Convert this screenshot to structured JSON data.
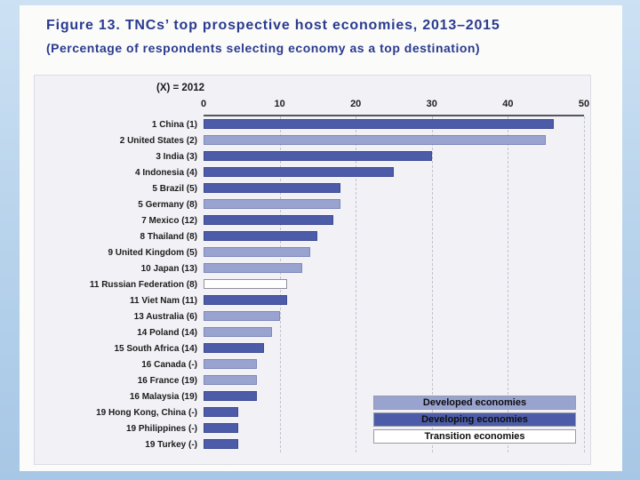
{
  "figure": {
    "title": "Figure 13. TNCs’ top prospective host economies, 2013–2015",
    "subtitle": "(Percentage of respondents selecting economy as a top destination)"
  },
  "colors": {
    "developed": "#98a3d0",
    "developing": "#4d5ca8",
    "transition": "#ffffff",
    "title_text": "#2a3b8f"
  },
  "chart_data": {
    "type": "bar",
    "orientation": "horizontal",
    "title": "Figure 13. TNCs’ top prospective host economies, 2013–2015",
    "subtitle": "(Percentage of respondents selecting economy as a top destination)",
    "note": "(X) = 2012",
    "xlim": [
      0,
      50
    ],
    "xticks": [
      0,
      10,
      20,
      30,
      40,
      50
    ],
    "grid": "dashed-vertical",
    "legend_position": "bottom-right-inside",
    "legend": [
      {
        "label": "Developed economies",
        "group": "developed",
        "color": "#98a3d0"
      },
      {
        "label": "Developing economies",
        "group": "developing",
        "color": "#4d5ca8"
      },
      {
        "label": "Transition economies",
        "group": "transition",
        "color": "#ffffff"
      }
    ],
    "bars": [
      {
        "label": "1 China (1)",
        "value": 46,
        "group": "developing"
      },
      {
        "label": "2 United States (2)",
        "value": 45,
        "group": "developed"
      },
      {
        "label": "3 India (3)",
        "value": 30,
        "group": "developing"
      },
      {
        "label": "4 Indonesia (4)",
        "value": 25,
        "group": "developing"
      },
      {
        "label": "5 Brazil (5)",
        "value": 18,
        "group": "developing"
      },
      {
        "label": "5 Germany (8)",
        "value": 18,
        "group": "developed"
      },
      {
        "label": "7 Mexico (12)",
        "value": 17,
        "group": "developing"
      },
      {
        "label": "8 Thailand (8)",
        "value": 15,
        "group": "developing"
      },
      {
        "label": "9 United Kingdom (5)",
        "value": 14,
        "group": "developed"
      },
      {
        "label": "10 Japan (13)",
        "value": 13,
        "group": "developed"
      },
      {
        "label": "11 Russian Federation (8)",
        "value": 11,
        "group": "transition"
      },
      {
        "label": "11 Viet Nam (11)",
        "value": 11,
        "group": "developing"
      },
      {
        "label": "13 Australia (6)",
        "value": 10,
        "group": "developed"
      },
      {
        "label": "14 Poland (14)",
        "value": 9,
        "group": "developed"
      },
      {
        "label": "15 South Africa (14)",
        "value": 8,
        "group": "developing"
      },
      {
        "label": "16 Canada (-)",
        "value": 7,
        "group": "developed"
      },
      {
        "label": "16 France (19)",
        "value": 7,
        "group": "developed"
      },
      {
        "label": "16 Malaysia (19)",
        "value": 7,
        "group": "developing"
      },
      {
        "label": "19 Hong Kong, China (-)",
        "value": 4.5,
        "group": "developing"
      },
      {
        "label": "19 Philippines (-)",
        "value": 4.5,
        "group": "developing"
      },
      {
        "label": "19 Turkey (-)",
        "value": 4.5,
        "group": "developing"
      }
    ]
  }
}
